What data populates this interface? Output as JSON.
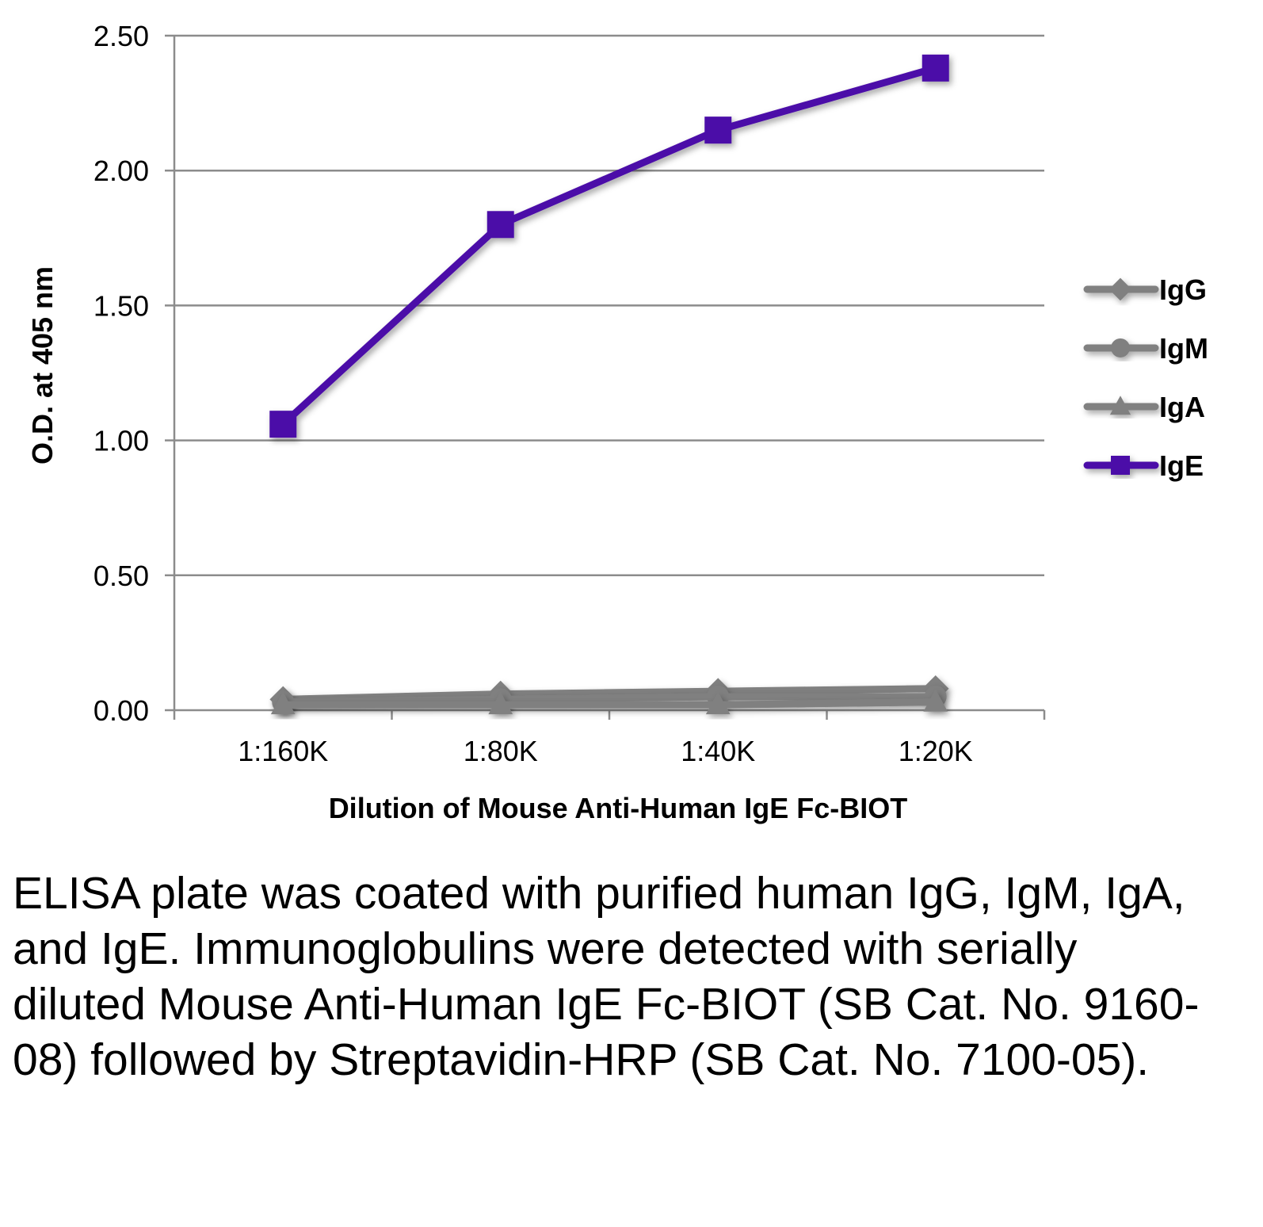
{
  "chart_data": {
    "type": "line",
    "title": "",
    "xlabel": "Dilution of Mouse Anti-Human IgE Fc-BIOT",
    "ylabel": "O.D. at 405 nm",
    "categories": [
      "1:160K",
      "1:80K",
      "1:40K",
      "1:20K"
    ],
    "ylim": [
      0,
      2.5
    ],
    "yticks": [
      "0.00",
      "0.50",
      "1.00",
      "1.50",
      "2.00",
      "2.50"
    ],
    "grid": true,
    "legend_position": "right",
    "series": [
      {
        "name": "IgG",
        "marker": "diamond",
        "color": "#808080",
        "values": [
          0.04,
          0.06,
          0.07,
          0.08
        ]
      },
      {
        "name": "IgM",
        "marker": "circle",
        "color": "#808080",
        "values": [
          0.03,
          0.04,
          0.05,
          0.05
        ]
      },
      {
        "name": "IgA",
        "marker": "triangle",
        "color": "#808080",
        "values": [
          0.02,
          0.02,
          0.02,
          0.03
        ]
      },
      {
        "name": "IgE",
        "marker": "square",
        "color": "#4b0fa8",
        "values": [
          1.06,
          1.8,
          2.15,
          2.38
        ]
      }
    ]
  },
  "caption": "ELISA plate was coated with purified human IgG, IgM, IgA, and IgE.  Immunoglobulins were detected with serially diluted Mouse Anti-Human IgE Fc-BIOT (SB Cat. No. 9160-08) followed by Streptavidin-HRP (SB Cat. No. 7100-05)."
}
